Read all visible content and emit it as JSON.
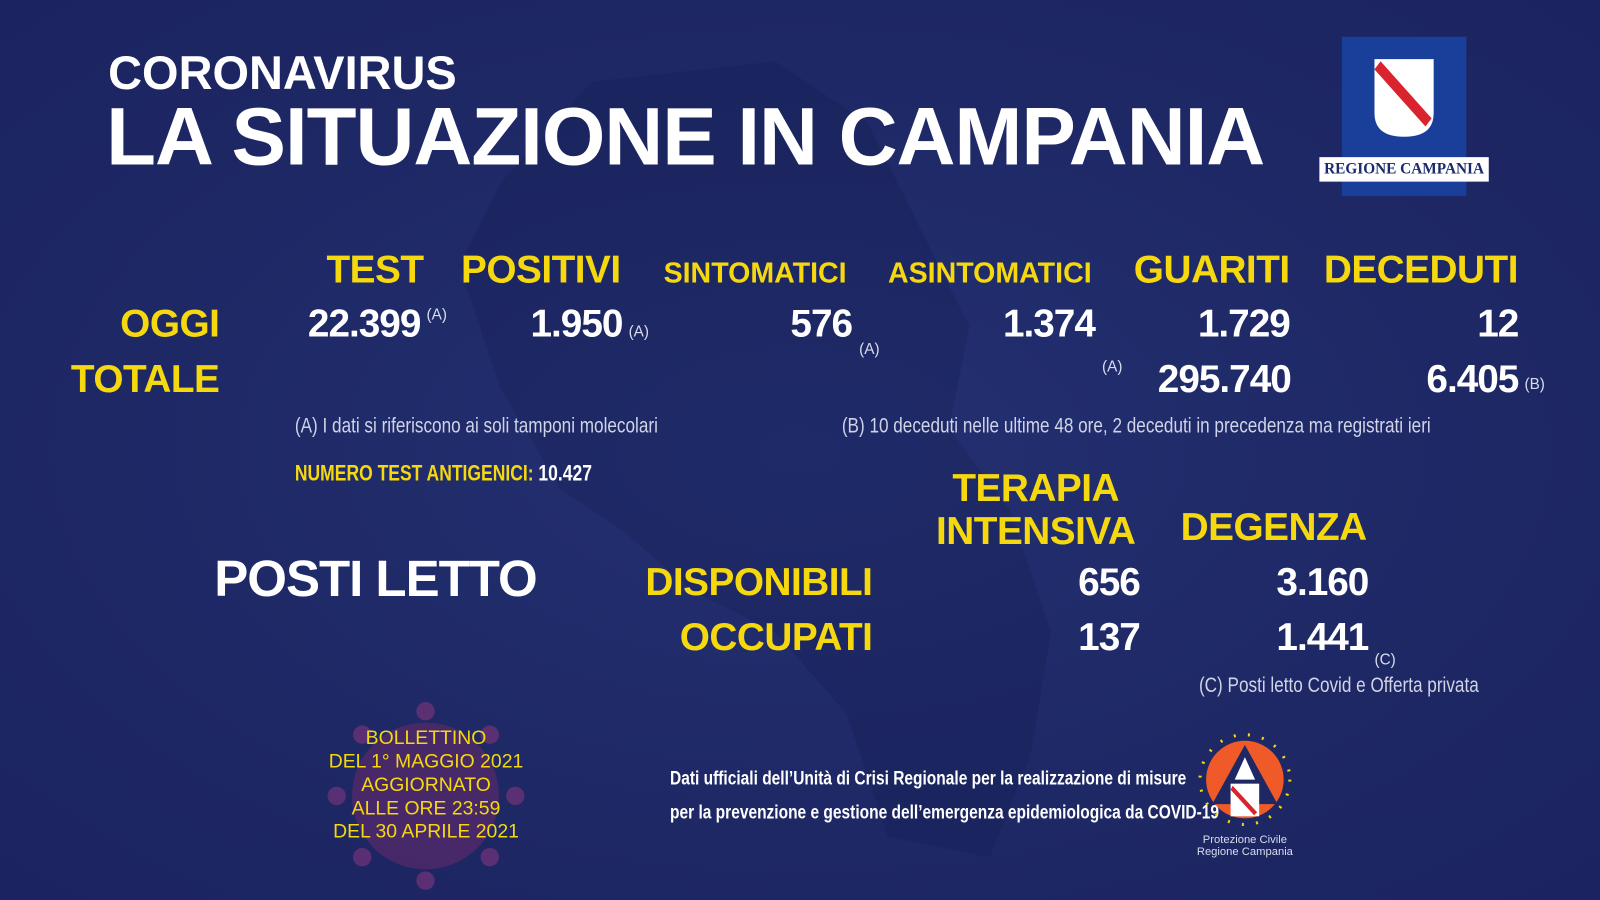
{
  "header": {
    "kicker": "CORONAVIRUS",
    "title": "LA SITUAZIONE IN CAMPANIA",
    "logo_text": "REGIONE CAMPANIA"
  },
  "columns": [
    "TEST",
    "POSITIVI",
    "SINTOMATICI",
    "ASINTOMATICI",
    "GUARITI",
    "DECEDUTI"
  ],
  "rows": {
    "oggi": {
      "label": "OGGI",
      "test": "22.399",
      "test_note": "(A)",
      "positivi": "1.950",
      "positivi_note": "(A)",
      "sintomatici": "576",
      "sintomatici_note": "(A)",
      "asintomatici": "1.374",
      "asintomatici_note": "(A)",
      "guariti": "1.729",
      "deceduti": "12",
      "deceduti_note": "(B)"
    },
    "totale": {
      "label": "TOTALE",
      "guariti": "295.740",
      "deceduti": "6.405"
    }
  },
  "notes": {
    "a": "(A) I dati si riferiscono ai soli tamponi molecolari",
    "b": "(B) 10 deceduti nelle ultime 48 ore, 2 deceduti in precedenza ma registrati ieri",
    "antigen_label": "NUMERO TEST ANTIGENICI:",
    "antigen_value": "10.427",
    "c": "(C) Posti letto Covid e Offerta privata"
  },
  "beds": {
    "title": "POSTI LETTO",
    "col_ti_1": "TERAPIA",
    "col_ti_2": "INTENSIVA",
    "col_deg": "DEGENZA",
    "disponibili": {
      "label": "DISPONIBILI",
      "ti": "656",
      "deg": "3.160",
      "deg_note": "(C)"
    },
    "occupati": {
      "label": "OCCUPATI",
      "ti": "137",
      "deg": "1.441"
    }
  },
  "bulletin": [
    "BOLLETTINO",
    "DEL 1° MAGGIO 2021",
    "AGGIORNATO",
    "ALLE ORE 23:59",
    "DEL 30 APRILE 2021"
  ],
  "footer": {
    "line1": "Dati ufficiali dell’Unità di Crisi Regionale per la realizzazione di misure",
    "line2": "per la prevenzione e gestione dell’emergenza epidemiologica da COVID-19"
  },
  "protezione": {
    "line1": "Protezione Civile",
    "line2": "Regione Campania"
  },
  "colors": {
    "background": "#1f2968",
    "accent": "#f6d80f",
    "text": "#ffffff",
    "protezione": "#f05a28"
  }
}
